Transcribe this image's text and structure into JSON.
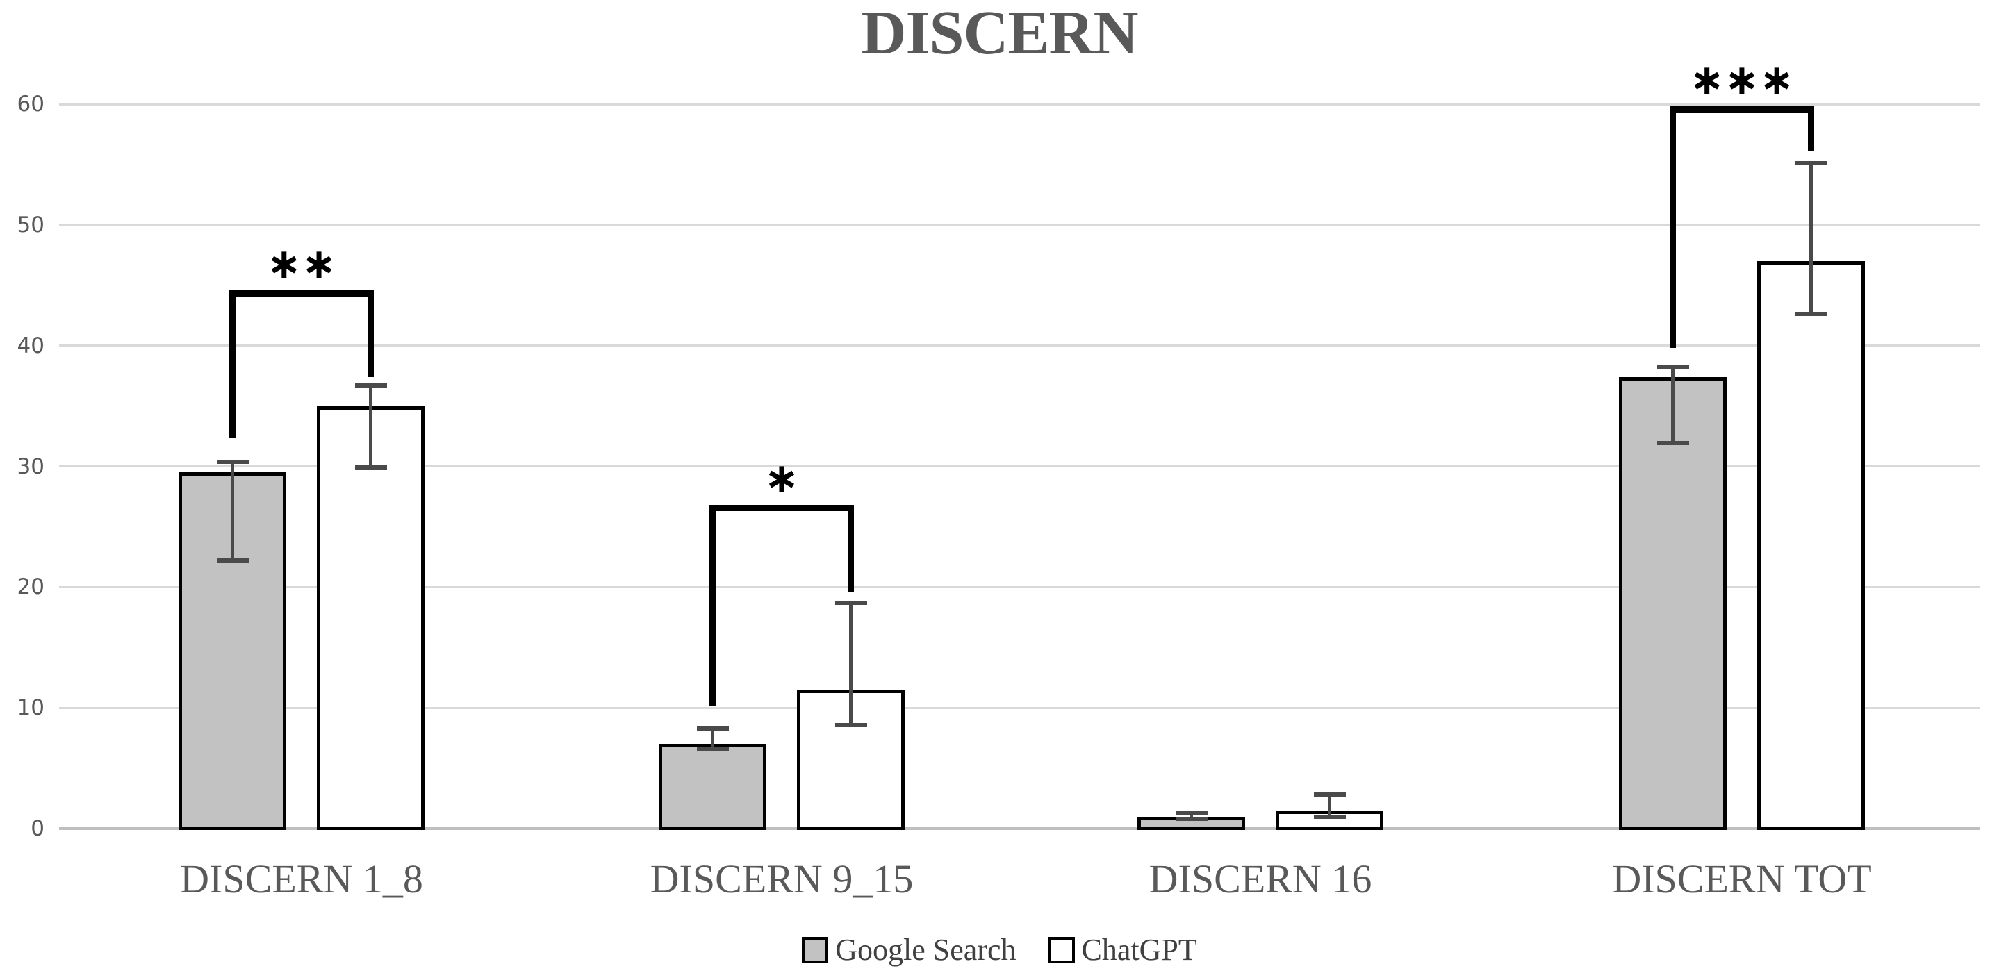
{
  "chart_data": {
    "type": "bar",
    "title": "DISCERN",
    "categories": [
      "DISCERN 1_8",
      "DISCERN 9_15",
      "DISCERN 16",
      "DISCERN TOT"
    ],
    "series": [
      {
        "name": "Google Search",
        "fill": "#C2C2C2",
        "values": [
          29.5,
          7.0,
          1.0,
          37.4
        ],
        "error_low": [
          22.2,
          6.6,
          0.8,
          31.9
        ],
        "error_high": [
          30.4,
          8.3,
          1.3,
          38.2
        ]
      },
      {
        "name": "ChatGPT",
        "fill": "#FFFFFF",
        "values": [
          35.0,
          11.5,
          1.5,
          47.0
        ],
        "error_low": [
          29.9,
          8.6,
          1.0,
          42.6
        ],
        "error_high": [
          36.7,
          18.7,
          2.8,
          55.1
        ]
      }
    ],
    "ylim": [
      0,
      60
    ],
    "yticks": [
      0,
      10,
      20,
      30,
      40,
      50,
      60
    ],
    "grid": true,
    "legend_position": "bottom-center",
    "significance_brackets": [
      {
        "category_index": 0,
        "label": "**",
        "top_value": 44.6,
        "left_drop_value": 32.4,
        "right_drop_value": 37.4
      },
      {
        "category_index": 1,
        "label": "*",
        "top_value": 26.8,
        "left_drop_value": 10.2,
        "right_drop_value": 19.6
      },
      {
        "category_index": 3,
        "label": "***",
        "top_value": 59.8,
        "left_drop_value": 39.8,
        "right_drop_value": 56.1
      }
    ]
  },
  "colors": {
    "title_text": "#595959",
    "axis_tick_text": "#595959",
    "category_text": "#595959",
    "legend_text": "#404040",
    "gridline": "#D9D9D9",
    "axis_line": "#BFBFBF",
    "bar_border": "#000000",
    "error_bar": "#4A4A4A",
    "bracket": "#000000",
    "stars": "#000000",
    "background": "#FFFFFF"
  }
}
